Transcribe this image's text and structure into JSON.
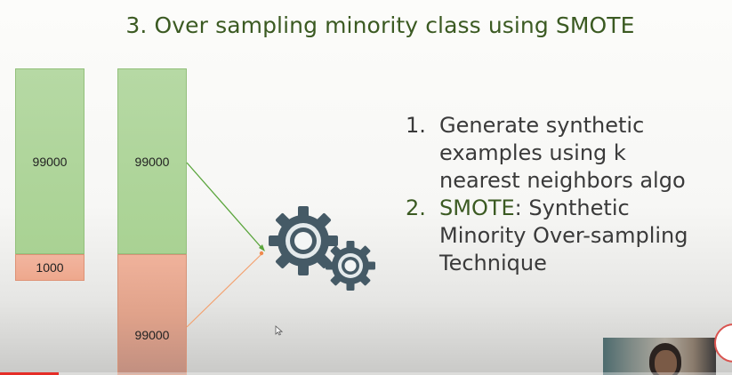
{
  "slide": {
    "title": "3. Over sampling minority class using SMOTE"
  },
  "bars": {
    "original": {
      "majority_label": "99000",
      "minority_label": "1000"
    },
    "oversampled": {
      "majority_label": "99000",
      "minority_label": "99000"
    }
  },
  "colors": {
    "majority": "#a9d293",
    "minority": "#eea88d",
    "accent_text": "#3b5a22",
    "connector_green": "#5aa53c",
    "connector_orange": "#f3a16f",
    "gear": "#455a66"
  },
  "points": [
    {
      "number": "1.",
      "highlight": "",
      "text_lines": [
        "Generate synthetic",
        "examples using k",
        "nearest neighbors algo"
      ]
    },
    {
      "number": "2.",
      "highlight": "SMOTE",
      "text_lines": [
        ": Synthetic",
        "Minority Over-sampling",
        "Technique"
      ]
    }
  ],
  "icons": {
    "gears": "gears-icon",
    "cursor": "mouse-cursor-icon"
  },
  "video": {
    "progress": 0.08
  }
}
